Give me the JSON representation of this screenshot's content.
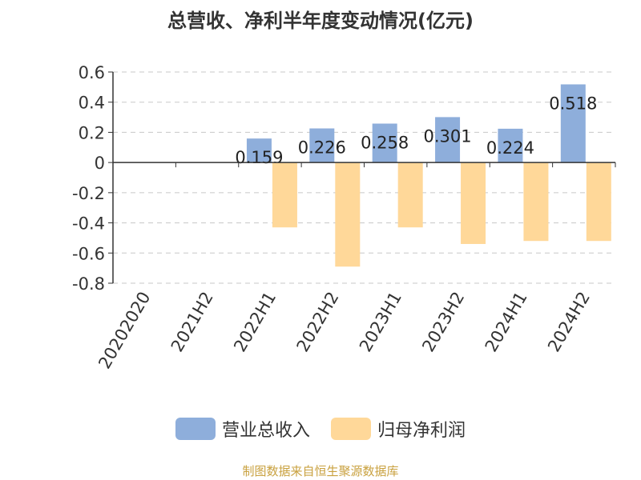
{
  "chart_data": {
    "type": "bar",
    "title": "总营收、净利半年度变动情况(亿元)",
    "categories": [
      "20202020",
      "2021H2",
      "2022H1",
      "2022H2",
      "2023H1",
      "2023H2",
      "2024H1",
      "2024H2"
    ],
    "series": [
      {
        "name": "营业总收入",
        "color": "#8eaedb",
        "values": [
          null,
          null,
          0.159,
          0.226,
          0.258,
          0.301,
          0.224,
          0.518
        ],
        "data_labels": [
          "",
          "",
          "0.159",
          "0.226",
          "0.258",
          "0.301",
          "0.224",
          "0.518"
        ]
      },
      {
        "name": "归母净利润",
        "color": "#ffd899",
        "values": [
          null,
          null,
          -0.43,
          -0.69,
          -0.43,
          -0.54,
          -0.52,
          -0.52
        ]
      }
    ],
    "ylim": [
      -0.8,
      0.6
    ],
    "yticks": [
      "0.6",
      "0.4",
      "0.2",
      "0",
      "-0.2",
      "-0.4",
      "-0.6",
      "-0.8"
    ],
    "ytick_values": [
      0.6,
      0.4,
      0.2,
      0,
      -0.2,
      -0.4,
      -0.6,
      -0.8
    ],
    "grid": true,
    "legend_position": "bottom"
  },
  "footer": {
    "source": "制图数据来自恒生聚源数据库"
  }
}
